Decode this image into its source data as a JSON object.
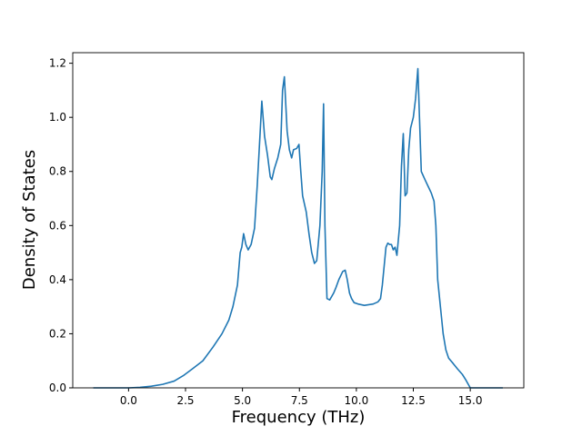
{
  "chart_data": {
    "type": "line",
    "xlabel": "Frequency (THz)",
    "ylabel": "Density of States",
    "x": [
      -1.55,
      0,
      0.5,
      1.0,
      1.5,
      2.0,
      2.4,
      2.8,
      3.26,
      3.7,
      4.1,
      4.4,
      4.58,
      4.78,
      4.9,
      4.97,
      5.05,
      5.15,
      5.25,
      5.38,
      5.53,
      5.65,
      5.78,
      5.85,
      5.97,
      6.1,
      6.22,
      6.29,
      6.4,
      6.55,
      6.68,
      6.76,
      6.84,
      6.96,
      7.06,
      7.16,
      7.24,
      7.38,
      7.48,
      7.56,
      7.64,
      7.8,
      7.92,
      8.04,
      8.16,
      8.26,
      8.4,
      8.5,
      8.56,
      8.62,
      8.71,
      8.83,
      9.0,
      9.1,
      9.23,
      9.4,
      9.51,
      9.6,
      9.7,
      9.79,
      9.9,
      10.07,
      10.35,
      10.74,
      10.95,
      11.06,
      11.14,
      11.22,
      11.3,
      11.38,
      11.46,
      11.54,
      11.62,
      11.7,
      11.78,
      11.9,
      11.98,
      12.06,
      12.14,
      12.22,
      12.3,
      12.38,
      12.5,
      12.6,
      12.7,
      12.77,
      12.85,
      13.01,
      13.15,
      13.29,
      13.41,
      13.49,
      13.57,
      13.69,
      13.81,
      13.93,
      14.05,
      14.25,
      14.44,
      14.65,
      14.8,
      15.0,
      15.5,
      16.43
    ],
    "series": [
      {
        "color": "#1f77b4",
        "values": [
          0,
          0,
          0.002,
          0.006,
          0.013,
          0.025,
          0.045,
          0.07,
          0.1,
          0.15,
          0.2,
          0.25,
          0.3,
          0.38,
          0.5,
          0.52,
          0.57,
          0.53,
          0.51,
          0.53,
          0.59,
          0.75,
          0.95,
          1.06,
          0.93,
          0.86,
          0.78,
          0.77,
          0.81,
          0.85,
          0.9,
          1.1,
          1.15,
          0.95,
          0.88,
          0.85,
          0.88,
          0.885,
          0.9,
          0.8,
          0.71,
          0.65,
          0.57,
          0.5,
          0.46,
          0.47,
          0.6,
          0.8,
          1.05,
          0.6,
          0.33,
          0.325,
          0.35,
          0.37,
          0.4,
          0.43,
          0.435,
          0.4,
          0.35,
          0.33,
          0.315,
          0.31,
          0.305,
          0.31,
          0.318,
          0.33,
          0.38,
          0.45,
          0.52,
          0.535,
          0.53,
          0.53,
          0.51,
          0.52,
          0.49,
          0.6,
          0.82,
          0.94,
          0.71,
          0.72,
          0.88,
          0.96,
          1.0,
          1.07,
          1.18,
          1.0,
          0.8,
          0.77,
          0.745,
          0.72,
          0.69,
          0.6,
          0.4,
          0.3,
          0.2,
          0.14,
          0.11,
          0.09,
          0.07,
          0.05,
          0.03,
          0,
          0,
          0
        ]
      }
    ],
    "xlim": [
      -2.45,
      17.35
    ],
    "ylim": [
      0,
      1.239
    ],
    "xticks": [
      {
        "value": 0,
        "label": "0.0"
      },
      {
        "value": 2.5,
        "label": "2.5"
      },
      {
        "value": 5,
        "label": "5.0"
      },
      {
        "value": 7.5,
        "label": "7.5"
      },
      {
        "value": 10,
        "label": "10.0"
      },
      {
        "value": 12.5,
        "label": "12.5"
      },
      {
        "value": 15,
        "label": "15.0"
      }
    ],
    "yticks": [
      {
        "value": 0,
        "label": "0.0"
      },
      {
        "value": 0.2,
        "label": "0.2"
      },
      {
        "value": 0.4,
        "label": "0.4"
      },
      {
        "value": 0.6,
        "label": "0.6"
      },
      {
        "value": 0.8,
        "label": "0.8"
      },
      {
        "value": 1.0,
        "label": "1.0"
      },
      {
        "value": 1.2,
        "label": "1.2"
      }
    ],
    "grid": false
  }
}
